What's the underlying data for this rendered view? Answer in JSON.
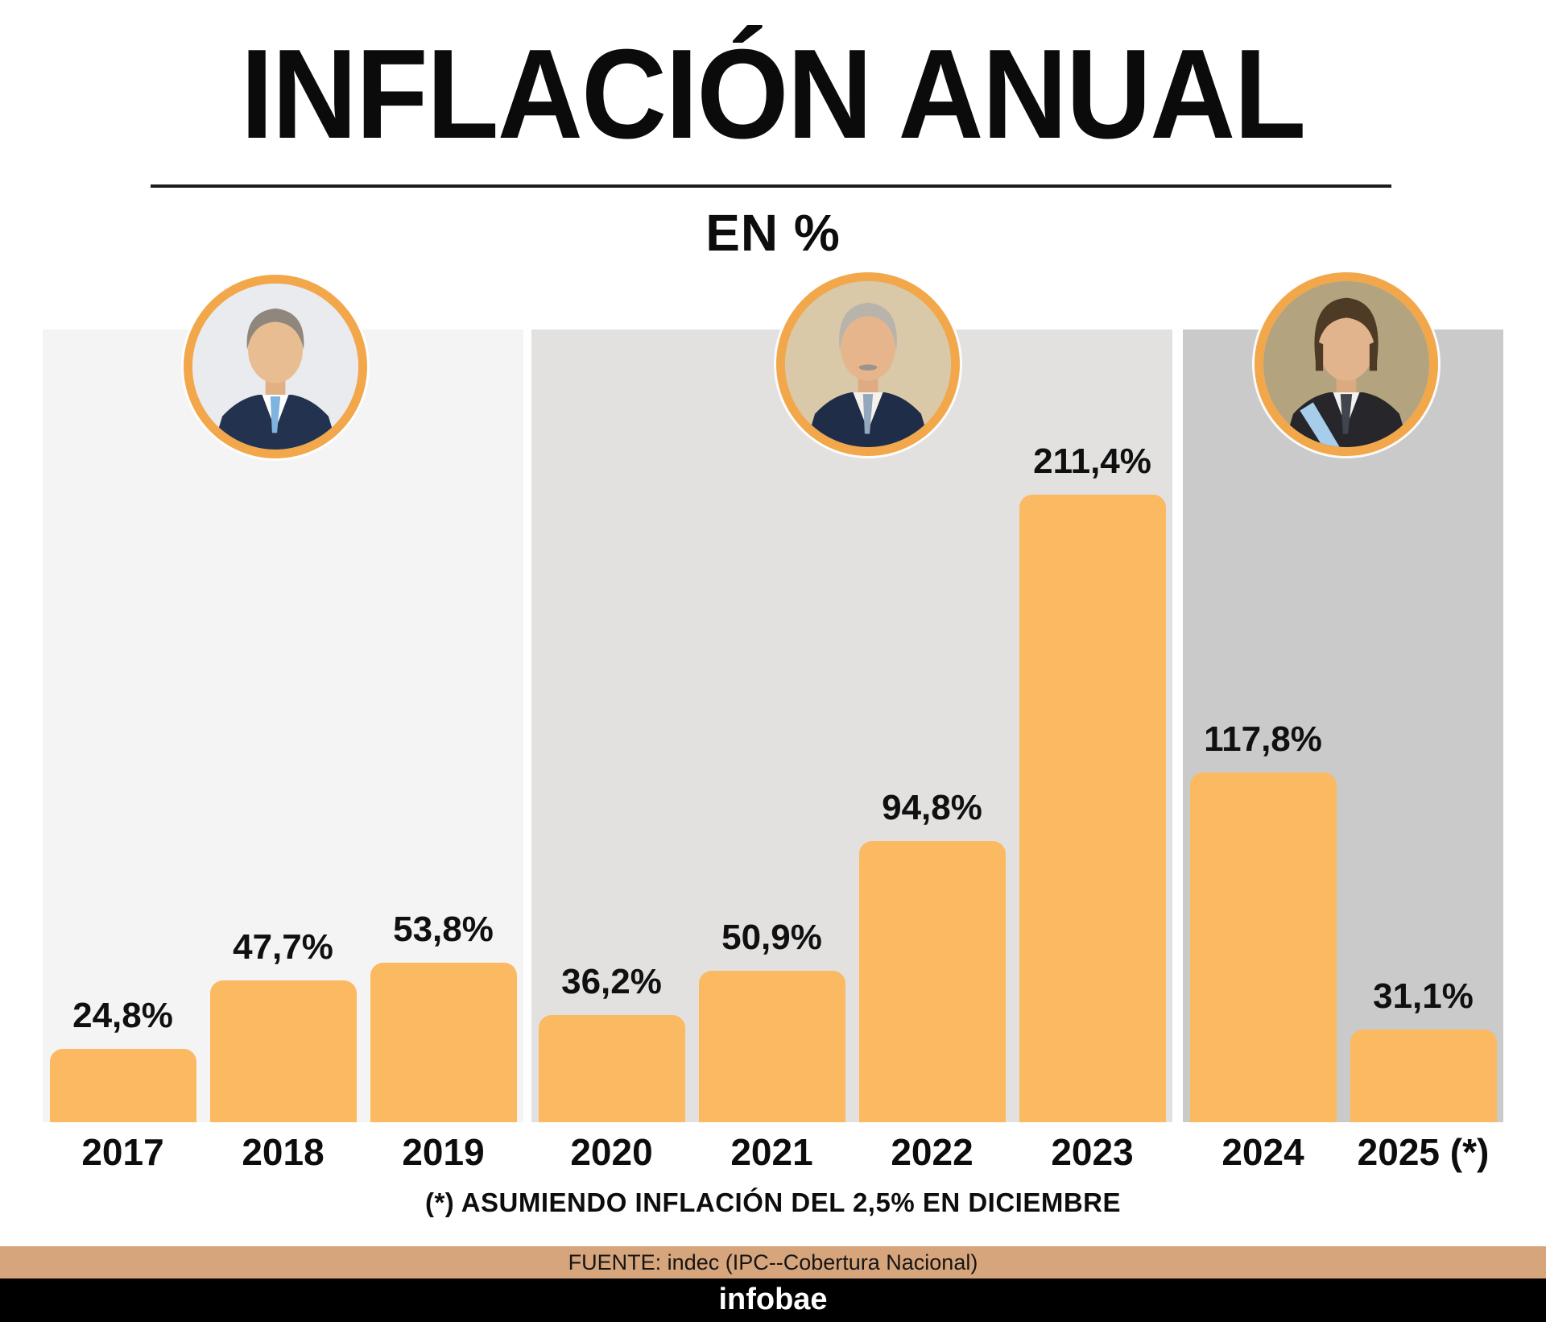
{
  "header": {
    "title": "INFLACIÓN ANUAL",
    "subtitle": "EN %"
  },
  "footer": {
    "footnote": "(*) ASUMIENDO INFLACIÓN DEL 2,5% EN DICIEMBRE",
    "source_text": "FUENTE: indec (IPC--Cobertura Nacional)",
    "source_bar_color": "#D7A57C",
    "brand": "infobae",
    "brand_bar_color": "#000000",
    "brand_text_color": "#FFFFFF"
  },
  "chart_data": {
    "type": "bar",
    "title": "INFLACIÓN ANUAL",
    "subtitle": "EN %",
    "unit": "%",
    "categories": [
      "2017",
      "2018",
      "2019",
      "2020",
      "2021",
      "2022",
      "2023",
      "2024",
      "2025 (*)"
    ],
    "values": [
      24.8,
      47.7,
      53.8,
      36.2,
      50.9,
      94.8,
      211.4,
      117.8,
      31.1
    ],
    "value_labels": [
      "24,8%",
      "47,7%",
      "53,8%",
      "36,2%",
      "50,9%",
      "94,8%",
      "211,4%",
      "117,8%",
      "31,1%"
    ],
    "bar_color": "#FBB961",
    "label_color": "#101010",
    "ylim": [
      0,
      267
    ],
    "grid": false,
    "legend": false,
    "groups": [
      {
        "avatar": "macri-photo",
        "bar_indexes": [
          0,
          1,
          2
        ],
        "panel_color": "#F4F4F4"
      },
      {
        "avatar": "fernandez-photo",
        "bar_indexes": [
          3,
          4,
          5,
          6
        ],
        "panel_color": "#E2E1E0"
      },
      {
        "avatar": "milei-photo",
        "bar_indexes": [
          7,
          8
        ],
        "panel_color": "#CACACA"
      }
    ],
    "avatar_ring_color": "#F2A74B"
  }
}
